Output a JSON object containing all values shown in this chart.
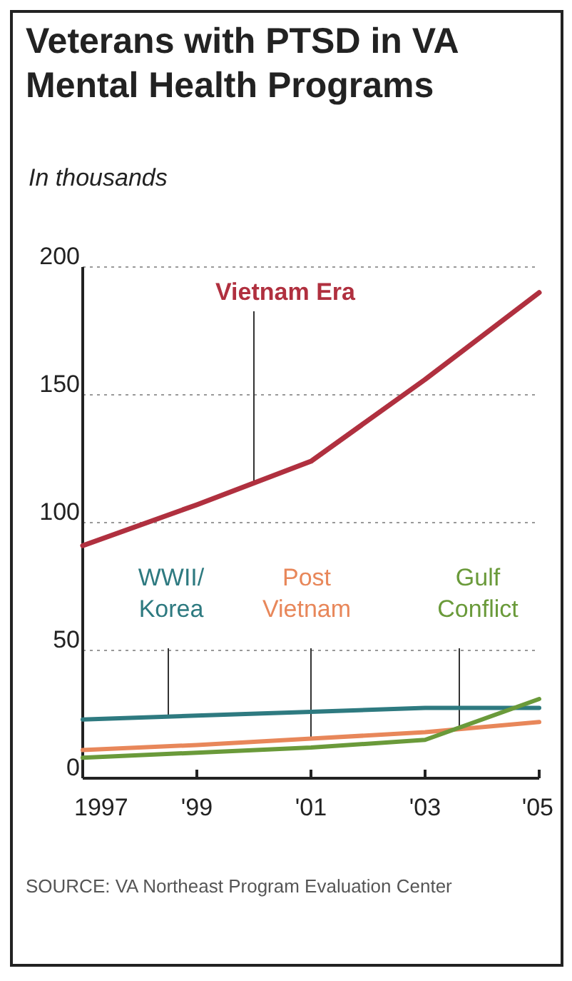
{
  "chart_data": {
    "type": "line",
    "title": "Veterans with PTSD in VA Mental Health Programs",
    "subtitle": "In thousands",
    "x": [
      1997,
      1999,
      2001,
      2003,
      2005
    ],
    "series": [
      {
        "name": "Vietnam Era",
        "color": "#b0303f",
        "values": [
          91,
          107,
          124,
          156,
          190
        ]
      },
      {
        "name": "WWII/ Korea",
        "color": "#2e7a80",
        "values": [
          23,
          24.5,
          26,
          27.5,
          27.5
        ]
      },
      {
        "name": "Post Vietnam",
        "color": "#e8875a",
        "values": [
          11,
          13,
          15.5,
          18,
          22
        ]
      },
      {
        "name": "Gulf Conflict",
        "color": "#6a9a3a",
        "values": [
          8,
          10,
          12,
          15,
          31
        ]
      }
    ],
    "xlim": [
      1997,
      2005
    ],
    "xticks": [
      {
        "value": 1997,
        "label": "1997"
      },
      {
        "value": 1999,
        "label": "'99"
      },
      {
        "value": 2001,
        "label": "'01"
      },
      {
        "value": 2003,
        "label": "'03"
      },
      {
        "value": 2005,
        "label": "'05"
      }
    ],
    "ylim": [
      0,
      200
    ],
    "yticks": [
      0,
      50,
      100,
      150,
      200
    ],
    "grid": "y",
    "marker": "none",
    "line_style": "solid",
    "annotations": [
      "SOURCE: VA Northeast Program Evaluation Center"
    ]
  }
}
